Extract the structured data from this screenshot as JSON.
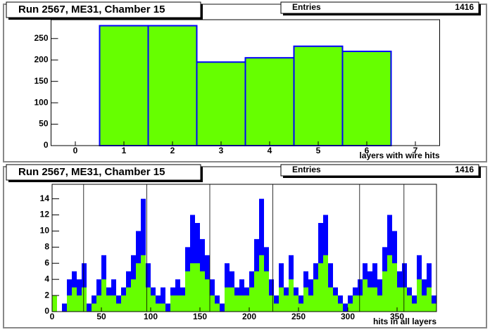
{
  "chart_data": [
    {
      "type": "histogram",
      "title": "Run 2567, ME31, Chamber 15",
      "stats": {
        "label": "Entries",
        "value": 1416
      },
      "xlabel": "layers with wire hits",
      "bins": [
        -0.5,
        0.5,
        1.5,
        2.5,
        3.5,
        4.5,
        5.5,
        6.5,
        7.5
      ],
      "series": [
        {
          "color": "#66ff00",
          "edgecolor": "#0000ff",
          "values": [
            0,
            280,
            280,
            195,
            205,
            232,
            220,
            0
          ]
        }
      ],
      "xlim": [
        -0.5,
        7.5
      ],
      "xticks": [
        0,
        1,
        2,
        3,
        4,
        5,
        6,
        7
      ],
      "ylim": [
        0,
        294
      ],
      "yticks": [
        0,
        50,
        100,
        150,
        200,
        250
      ]
    },
    {
      "type": "histogram",
      "title": "Run 2567, ME31, Chamber 15",
      "stats": {
        "label": "Entries",
        "value": 1416
      },
      "xlabel": "hits in all layers",
      "bins": [
        0,
        5,
        10,
        15,
        20,
        25,
        30,
        35,
        40,
        45,
        50,
        55,
        60,
        65,
        70,
        75,
        80,
        85,
        90,
        95,
        100,
        105,
        110,
        115,
        120,
        125,
        130,
        135,
        140,
        145,
        150,
        155,
        160,
        165,
        170,
        175,
        180,
        185,
        190,
        195,
        200,
        205,
        210,
        215,
        220,
        225,
        230,
        235,
        240,
        245,
        250,
        255,
        260,
        265,
        270,
        275,
        280,
        285,
        290,
        295,
        300,
        305,
        310,
        315,
        320,
        325,
        330,
        335,
        340,
        345,
        350,
        355,
        360,
        365,
        370,
        375,
        380,
        385,
        390
      ],
      "series": [
        {
          "color": "#0000ff",
          "values": [
            2,
            0,
            1,
            4,
            5,
            4,
            6,
            1,
            2,
            4,
            7,
            3,
            4,
            2,
            3,
            5,
            7,
            10,
            14,
            6,
            3,
            2,
            3,
            1,
            3,
            4,
            3,
            8,
            12,
            11,
            9,
            7,
            4,
            2,
            1,
            6,
            5,
            3,
            4,
            3,
            5,
            9,
            14,
            8,
            4,
            2,
            6,
            3,
            7,
            3,
            2,
            5,
            4,
            6,
            11,
            12,
            6,
            3,
            2,
            1,
            2,
            3,
            4,
            6,
            5,
            6,
            4,
            8,
            12,
            10,
            5,
            6,
            3,
            2,
            7,
            4,
            6,
            2
          ]
        },
        {
          "color": "#66ff00",
          "values": [
            2,
            0,
            0,
            2,
            3,
            2,
            3,
            0,
            1,
            2,
            4,
            2,
            2,
            1,
            2,
            3,
            4,
            6,
            7,
            3,
            2,
            1,
            1,
            0,
            2,
            2,
            2,
            5,
            6,
            6,
            5,
            4,
            2,
            1,
            0,
            3,
            3,
            2,
            2,
            2,
            3,
            5,
            7,
            5,
            2,
            1,
            3,
            2,
            4,
            2,
            1,
            3,
            2,
            4,
            6,
            7,
            3,
            2,
            1,
            0,
            1,
            2,
            2,
            4,
            3,
            3,
            2,
            5,
            7,
            6,
            3,
            3,
            2,
            1,
            4,
            2,
            3,
            1
          ]
        }
      ],
      "vlines": [
        32,
        96,
        160,
        224,
        312,
        357
      ],
      "xlim": [
        0,
        390
      ],
      "xticks": [
        0,
        50,
        100,
        150,
        200,
        250,
        300,
        350
      ],
      "ylim": [
        0,
        15.8
      ],
      "yticks": [
        0,
        2,
        4,
        6,
        8,
        10,
        12,
        14
      ]
    }
  ]
}
